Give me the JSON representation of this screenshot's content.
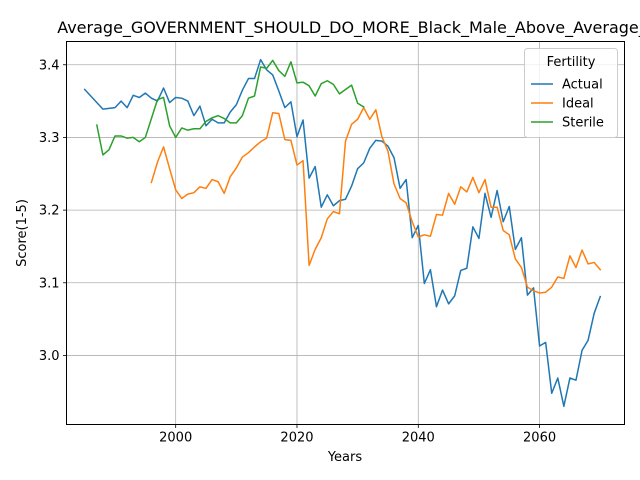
{
  "chart_data": {
    "type": "line",
    "title": "Average_GOVERNMENT_SHOULD_DO_MORE_Black_Male_Above_Average_",
    "xlabel": "Years",
    "ylabel": "Score(1-5)",
    "xlim": [
      1982,
      2074
    ],
    "ylim": [
      2.905,
      3.432
    ],
    "xticks": [
      2000,
      2020,
      2040,
      2060
    ],
    "xtick_labels": [
      "2000",
      "2020",
      "2040",
      "2060"
    ],
    "yticks": [
      3.0,
      3.1,
      3.2,
      3.3,
      3.4
    ],
    "ytick_labels": [
      "3.0",
      "3.1",
      "3.2",
      "3.3",
      "3.4"
    ],
    "grid": true,
    "legend": {
      "title": "Fertility",
      "position": "top-right"
    },
    "series": [
      {
        "name": "Actual",
        "color": "#1f77b4",
        "x": [
          1985,
          1988,
          1990,
          1991,
          1992,
          1993,
          1994,
          1995,
          1996,
          1997,
          1998,
          1999,
          2000,
          2001,
          2002,
          2003,
          2004,
          2005,
          2006,
          2007,
          2008,
          2009,
          2010,
          2011,
          2012,
          2013,
          2014,
          2015,
          2016,
          2017,
          2018,
          2019,
          2020,
          2021,
          2022,
          2023,
          2024,
          2025,
          2026,
          2027,
          2028,
          2029,
          2030,
          2031,
          2032,
          2033,
          2034,
          2035,
          2036,
          2037,
          2038,
          2039,
          2040,
          2041,
          2042,
          2043,
          2044,
          2045,
          2046,
          2047,
          2048,
          2049,
          2050,
          2051,
          2052,
          2053,
          2054,
          2055,
          2056,
          2057,
          2058,
          2059,
          2060,
          2061,
          2062,
          2063,
          2064,
          2065,
          2066,
          2067,
          2068,
          2069,
          2070
        ],
        "values": [
          3.366,
          3.339,
          3.341,
          3.35,
          3.341,
          3.358,
          3.355,
          3.361,
          3.354,
          3.35,
          3.368,
          3.348,
          3.355,
          3.354,
          3.35,
          3.33,
          3.343,
          3.316,
          3.325,
          3.32,
          3.32,
          3.335,
          3.345,
          3.365,
          3.381,
          3.381,
          3.407,
          3.393,
          3.386,
          3.364,
          3.341,
          3.349,
          3.301,
          3.324,
          3.244,
          3.26,
          3.204,
          3.221,
          3.206,
          3.213,
          3.215,
          3.233,
          3.257,
          3.265,
          3.285,
          3.296,
          3.295,
          3.288,
          3.272,
          3.23,
          3.242,
          3.162,
          3.179,
          3.099,
          3.118,
          3.067,
          3.09,
          3.071,
          3.082,
          3.117,
          3.12,
          3.177,
          3.161,
          3.223,
          3.19,
          3.227,
          3.184,
          3.205,
          3.146,
          3.162,
          3.083,
          3.093,
          3.013,
          3.018,
          2.948,
          2.969,
          2.93,
          2.969,
          2.966,
          3.007,
          3.021,
          3.058,
          3.081
        ]
      },
      {
        "name": "Ideal",
        "color": "#ff7f0e",
        "x": [
          1996,
          1997,
          1998,
          1999,
          2000,
          2001,
          2002,
          2003,
          2004,
          2005,
          2006,
          2007,
          2008,
          2009,
          2010,
          2011,
          2012,
          2013,
          2014,
          2015,
          2016,
          2017,
          2018,
          2019,
          2020,
          2021,
          2022,
          2023,
          2024,
          2025,
          2026,
          2027,
          2028,
          2029,
          2030,
          2031,
          2032,
          2033,
          2034,
          2035,
          2036,
          2037,
          2038,
          2039,
          2040,
          2041,
          2042,
          2043,
          2044,
          2045,
          2046,
          2047,
          2048,
          2049,
          2050,
          2051,
          2052,
          2053,
          2054,
          2055,
          2056,
          2057,
          2058,
          2059,
          2060,
          2061,
          2062,
          2063,
          2064,
          2065,
          2066,
          2067,
          2068,
          2069,
          2070
        ],
        "values": [
          3.238,
          3.266,
          3.287,
          3.257,
          3.228,
          3.216,
          3.222,
          3.224,
          3.232,
          3.23,
          3.242,
          3.239,
          3.223,
          3.246,
          3.258,
          3.273,
          3.279,
          3.287,
          3.294,
          3.299,
          3.334,
          3.333,
          3.297,
          3.296,
          3.262,
          3.268,
          3.124,
          3.146,
          3.162,
          3.188,
          3.198,
          3.195,
          3.295,
          3.318,
          3.325,
          3.341,
          3.325,
          3.338,
          3.301,
          3.281,
          3.236,
          3.216,
          3.21,
          3.184,
          3.163,
          3.166,
          3.164,
          3.194,
          3.193,
          3.223,
          3.208,
          3.232,
          3.225,
          3.245,
          3.224,
          3.242,
          3.204,
          3.204,
          3.172,
          3.166,
          3.133,
          3.121,
          3.094,
          3.089,
          3.086,
          3.087,
          3.094,
          3.108,
          3.106,
          3.137,
          3.121,
          3.145,
          3.126,
          3.128,
          3.118
        ]
      },
      {
        "name": "Sterile",
        "color": "#2ca02c",
        "x": [
          1987,
          1988,
          1989,
          1990,
          1991,
          1992,
          1993,
          1994,
          1995,
          1996,
          1997,
          1998,
          1999,
          2000,
          2001,
          2002,
          2003,
          2004,
          2005,
          2006,
          2007,
          2008,
          2009,
          2010,
          2011,
          2012,
          2013,
          2014,
          2015,
          2016,
          2017,
          2018,
          2019,
          2020,
          2021,
          2022,
          2023,
          2024,
          2025,
          2026,
          2027,
          2028,
          2029,
          2030,
          2031
        ],
        "values": [
          3.317,
          3.276,
          3.283,
          3.302,
          3.302,
          3.299,
          3.3,
          3.294,
          3.3,
          3.326,
          3.352,
          3.355,
          3.316,
          3.3,
          3.313,
          3.31,
          3.312,
          3.312,
          3.322,
          3.327,
          3.33,
          3.326,
          3.32,
          3.32,
          3.33,
          3.354,
          3.357,
          3.397,
          3.395,
          3.406,
          3.392,
          3.384,
          3.404,
          3.375,
          3.376,
          3.371,
          3.357,
          3.374,
          3.378,
          3.373,
          3.36,
          3.366,
          3.372,
          3.347,
          3.342
        ]
      }
    ]
  }
}
